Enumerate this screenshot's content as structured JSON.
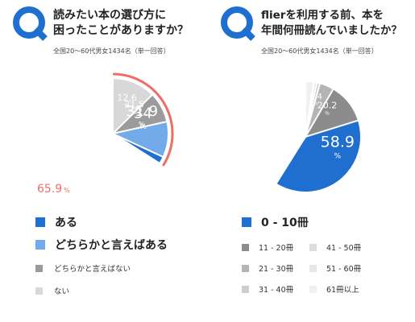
{
  "chart_data": [
    {
      "type": "pie",
      "question_mark": "Q",
      "title_lines": [
        "読みたい本の選び方に",
        "困ったことがありますか？"
      ],
      "subtitle": "全国20～60代男女1434名（単一回答）",
      "slices": [
        {
          "label": "ある",
          "value": 34,
          "display": "34",
          "color": "#1E6FD0",
          "text_color": "#ffffff"
        },
        {
          "label": "どちらかと言えばある",
          "value": 31.9,
          "display": "31.9",
          "color": "#72AAEA",
          "text_color": "#ffffff"
        },
        {
          "label": "どちらかと言えばない",
          "value": 21.5,
          "display": "21.5",
          "color": "#9B9B9B",
          "text_color": "#ffffff"
        },
        {
          "label": "ない",
          "value": 12.6,
          "display": "12.6",
          "color": "#D8D8D8",
          "text_color": "#ffffff"
        }
      ],
      "highlight": {
        "value": "65.9",
        "unit": "%",
        "color": "#EE6D64"
      },
      "percent_sign": "%"
    },
    {
      "type": "pie",
      "question_mark": "Q",
      "title_lines": [
        "flierを利用する前、本を",
        "年間何冊読んでいましたか？"
      ],
      "subtitle": "全国20～60代男女1434名（単一回答）",
      "slices": [
        {
          "label": "0 - 10冊",
          "value": 58.9,
          "display": "58.9",
          "color": "#1E6FD0",
          "text_color": "#ffffff"
        },
        {
          "label": "11 - 20冊",
          "value": 20.2,
          "display": "20.2",
          "color": "#8C8C8C",
          "text_color": "#ffffff"
        },
        {
          "label": "21 - 30冊",
          "value": 8.4,
          "display": "8.4",
          "color": "#B4B4B4",
          "text_color": "#ffffff"
        },
        {
          "label": "31 - 40冊",
          "value": 4.2,
          "display": "",
          "color": "#CDCDCD",
          "text_color": "#ffffff"
        },
        {
          "label": "41 - 50冊",
          "value": 3.3,
          "display": "",
          "color": "#DCDCDC",
          "text_color": "#ffffff"
        },
        {
          "label": "51 - 60冊",
          "value": 2.6,
          "display": "",
          "color": "#E6E6E6",
          "text_color": "#ffffff"
        },
        {
          "label": "61冊以上",
          "value": 2.4,
          "display": "",
          "color": "#F0F0F0",
          "text_color": "#ffffff"
        }
      ],
      "percent_sign": "%"
    }
  ],
  "colors": {
    "accent": "#1E6FD0",
    "highlight": "#EE6D64"
  }
}
